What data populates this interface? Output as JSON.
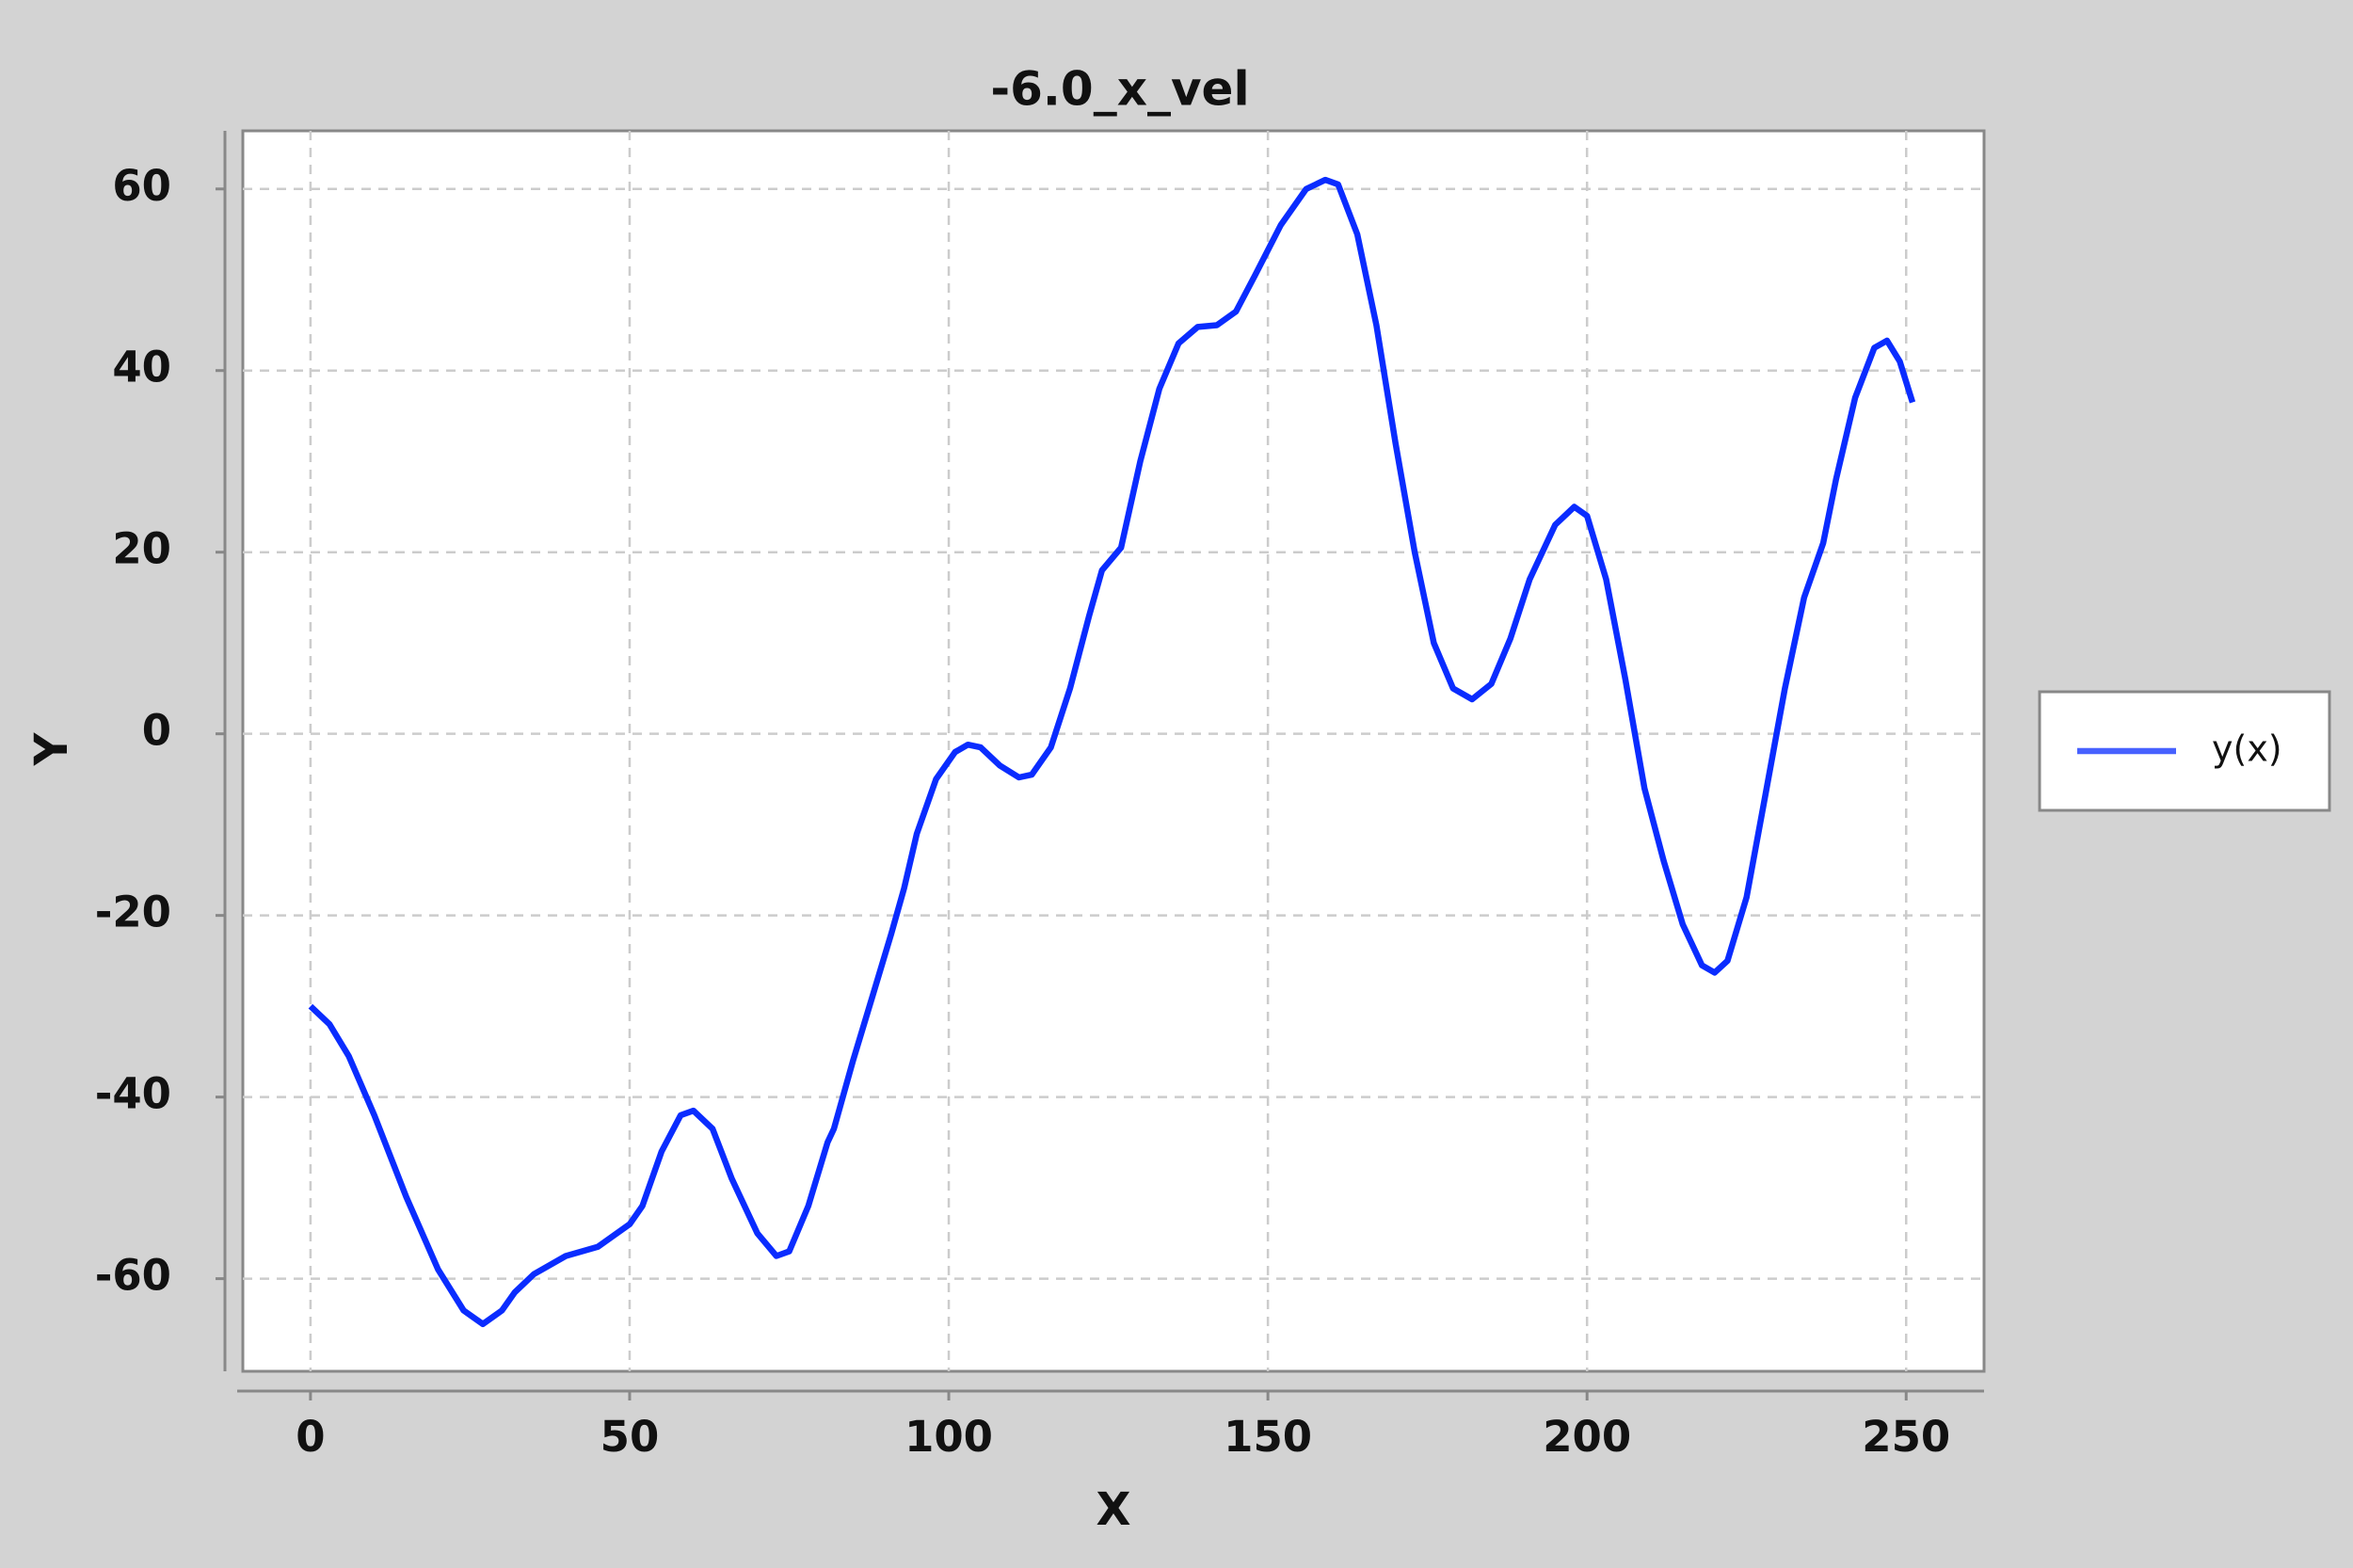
{
  "chart_data": {
    "type": "line",
    "title": "-6.0_x_vel",
    "x_label": "X",
    "y_label": "Y",
    "x": [
      0,
      3,
      6,
      10,
      15,
      20,
      24,
      27,
      30,
      32,
      35,
      40,
      45,
      50,
      52,
      55,
      58,
      60,
      63,
      66,
      70,
      73,
      75,
      78,
      81,
      82,
      85,
      88,
      91,
      93,
      95,
      98,
      101,
      103,
      105,
      108,
      111,
      113,
      116,
      119,
      122,
      124,
      127,
      130,
      133,
      136,
      139,
      142,
      145,
      148,
      152,
      156,
      159,
      161,
      164,
      167,
      170,
      173,
      176,
      179,
      182,
      185,
      188,
      191,
      195,
      198,
      200,
      203,
      206,
      209,
      212,
      215,
      218,
      220,
      222,
      225,
      228,
      231,
      234,
      237,
      239,
      242,
      245,
      247,
      249,
      251
    ],
    "series": [
      {
        "name": "y(x)",
        "color": "#0a2cff",
        "values": [
          -30,
          -32,
          -35.5,
          -42,
          -51,
          -59,
          -63.5,
          -65,
          -63.5,
          -61.5,
          -59.5,
          -57.5,
          -56.5,
          -54,
          -52,
          -46,
          -42,
          -41.5,
          -43.5,
          -49,
          -55,
          -57.5,
          -57,
          -52,
          -45,
          -43.5,
          -36,
          -29,
          -22,
          -17,
          -11,
          -5,
          -2,
          -1.2,
          -1.5,
          -3.5,
          -4.8,
          -4.5,
          -1.5,
          5,
          13,
          18,
          20.5,
          30,
          38,
          43,
          44.8,
          45,
          46.5,
          50.5,
          56,
          60,
          61,
          60.5,
          55,
          45,
          32,
          20,
          10,
          5,
          3.8,
          5.5,
          10.5,
          17,
          23,
          25,
          24,
          17,
          6,
          -6,
          -14,
          -21,
          -25.5,
          -26.3,
          -25,
          -18,
          -6.5,
          5,
          15,
          21,
          28,
          37,
          42.5,
          43.3,
          41,
          36.5
        ]
      }
    ],
    "xlim": [
      -10.6,
      262.2
    ],
    "ylim": [
      -70.2,
      66.4
    ],
    "xticks": [
      0,
      50,
      100,
      150,
      200,
      250
    ],
    "yticks": [
      -60,
      -40,
      -20,
      0,
      20,
      40,
      60
    ],
    "grid": true,
    "legend": "right"
  }
}
